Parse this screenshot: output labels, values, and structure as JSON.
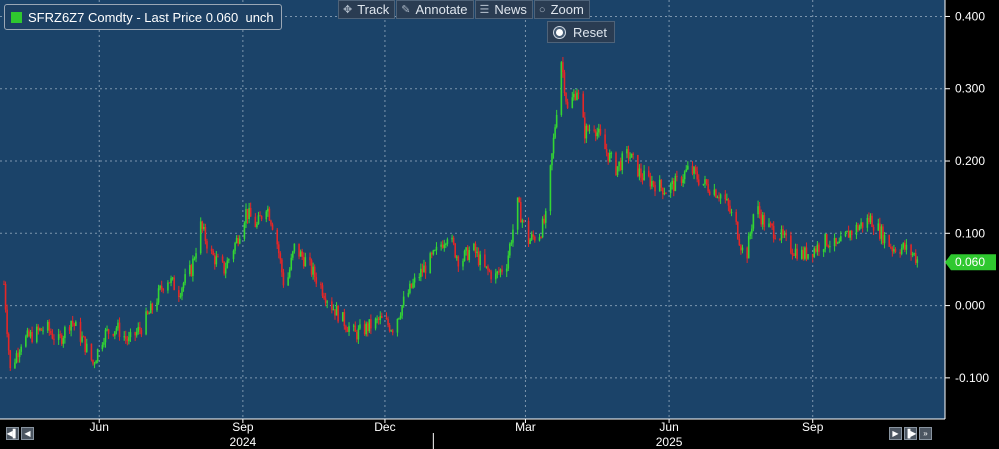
{
  "legend": {
    "swatch_color": "#2fc82f",
    "text": "SFRZ6Z7 Comdty - Last Price 0.060  unch"
  },
  "toolbar": [
    {
      "label": "Track",
      "icon": "crosshair-icon",
      "glyph": "✥"
    },
    {
      "label": "Annotate",
      "icon": "pencil-icon",
      "glyph": "✎"
    },
    {
      "label": "News",
      "icon": "news-icon",
      "glyph": "☰"
    },
    {
      "label": "Zoom",
      "icon": "magnifier-icon",
      "glyph": "○"
    }
  ],
  "reset_label": "Reset",
  "colors": {
    "background": "#1b4369",
    "up": "#33d633",
    "down": "#e52727",
    "price_tag": "#2fc82f",
    "grid": "#7d96ae",
    "axis_text": "#ffffff"
  },
  "chart_data": {
    "type": "candlestick",
    "series_name": "SFRZ6Z7 Comdty",
    "last_price": "0.060",
    "change": "unch",
    "ylim": [
      -0.15,
      0.42
    ],
    "yticks": [
      -0.1,
      0.0,
      0.1,
      0.2,
      0.3,
      0.4
    ],
    "ytick_labels": [
      "-0.100",
      "0.000",
      "0.100",
      "0.200",
      "0.300",
      "0.400"
    ],
    "xlim": [
      "2024-04-01",
      "2025-11-10"
    ],
    "month_labels": [
      {
        "date": "2024-06-01",
        "label": "Jun"
      },
      {
        "date": "2024-09-01",
        "label": "Sep"
      },
      {
        "date": "2024-12-01",
        "label": "Dec"
      },
      {
        "date": "2025-03-01",
        "label": "Mar"
      },
      {
        "date": "2025-06-01",
        "label": "Jun"
      },
      {
        "date": "2025-09-01",
        "label": "Sep"
      }
    ],
    "year_labels": [
      {
        "date": "2024-09-01",
        "label": "2024"
      },
      {
        "date": "2025-06-01",
        "label": "2025"
      }
    ],
    "year_separator": "2025-01-01",
    "closes": [
      [
        "2024-04-01",
        0.03
      ],
      [
        "2024-04-05",
        -0.09
      ],
      [
        "2024-04-12",
        -0.05
      ],
      [
        "2024-04-20",
        -0.04
      ],
      [
        "2024-04-28",
        -0.03
      ],
      [
        "2024-05-06",
        -0.05
      ],
      [
        "2024-05-14",
        -0.02
      ],
      [
        "2024-05-22",
        -0.05
      ],
      [
        "2024-05-28",
        -0.08
      ],
      [
        "2024-06-04",
        -0.04
      ],
      [
        "2024-06-12",
        -0.03
      ],
      [
        "2024-06-20",
        -0.05
      ],
      [
        "2024-06-28",
        -0.03
      ],
      [
        "2024-07-06",
        0.0
      ],
      [
        "2024-07-14",
        0.04
      ],
      [
        "2024-07-22",
        0.02
      ],
      [
        "2024-07-30",
        0.05
      ],
      [
        "2024-08-05",
        0.11
      ],
      [
        "2024-08-12",
        0.07
      ],
      [
        "2024-08-20",
        0.05
      ],
      [
        "2024-08-28",
        0.09
      ],
      [
        "2024-09-03",
        0.13
      ],
      [
        "2024-09-10",
        0.11
      ],
      [
        "2024-09-16",
        0.14
      ],
      [
        "2024-09-22",
        0.1
      ],
      [
        "2024-09-28",
        0.02
      ],
      [
        "2024-10-04",
        0.08
      ],
      [
        "2024-10-12",
        0.06
      ],
      [
        "2024-10-20",
        0.03
      ],
      [
        "2024-10-28",
        0.0
      ],
      [
        "2024-11-04",
        -0.02
      ],
      [
        "2024-11-12",
        -0.04
      ],
      [
        "2024-11-20",
        -0.03
      ],
      [
        "2024-11-28",
        -0.02
      ],
      [
        "2024-12-06",
        -0.03
      ],
      [
        "2024-12-14",
        0.01
      ],
      [
        "2024-12-22",
        0.04
      ],
      [
        "2025-01-02",
        0.07
      ],
      [
        "2025-01-10",
        0.1
      ],
      [
        "2025-01-18",
        0.06
      ],
      [
        "2025-01-26",
        0.08
      ],
      [
        "2025-02-03",
        0.05
      ],
      [
        "2025-02-10",
        0.04
      ],
      [
        "2025-02-17",
        0.06
      ],
      [
        "2025-02-24",
        0.14
      ],
      [
        "2025-03-03",
        0.09
      ],
      [
        "2025-03-10",
        0.1
      ],
      [
        "2025-03-14",
        0.12
      ],
      [
        "2025-03-20",
        0.25
      ],
      [
        "2025-03-24",
        0.34
      ],
      [
        "2025-03-28",
        0.27
      ],
      [
        "2025-04-03",
        0.3
      ],
      [
        "2025-04-08",
        0.24
      ],
      [
        "2025-04-14",
        0.25
      ],
      [
        "2025-04-20",
        0.22
      ],
      [
        "2025-04-28",
        0.19
      ],
      [
        "2025-05-06",
        0.21
      ],
      [
        "2025-05-14",
        0.18
      ],
      [
        "2025-05-22",
        0.17
      ],
      [
        "2025-05-30",
        0.16
      ],
      [
        "2025-06-06",
        0.17
      ],
      [
        "2025-06-14",
        0.19
      ],
      [
        "2025-06-22",
        0.17
      ],
      [
        "2025-06-30",
        0.16
      ],
      [
        "2025-07-06",
        0.15
      ],
      [
        "2025-07-14",
        0.11
      ],
      [
        "2025-07-20",
        0.06
      ],
      [
        "2025-07-26",
        0.14
      ],
      [
        "2025-08-02",
        0.11
      ],
      [
        "2025-08-10",
        0.1
      ],
      [
        "2025-08-18",
        0.08
      ],
      [
        "2025-08-26",
        0.07
      ],
      [
        "2025-09-03",
        0.08
      ],
      [
        "2025-09-10",
        0.09
      ],
      [
        "2025-09-17",
        0.08
      ],
      [
        "2025-09-24",
        0.1
      ],
      [
        "2025-10-01",
        0.11
      ],
      [
        "2025-10-08",
        0.12
      ],
      [
        "2025-10-15",
        0.1
      ],
      [
        "2025-10-22",
        0.08
      ],
      [
        "2025-10-29",
        0.08
      ],
      [
        "2025-11-05",
        0.07
      ],
      [
        "2025-11-08",
        0.06
      ]
    ]
  }
}
